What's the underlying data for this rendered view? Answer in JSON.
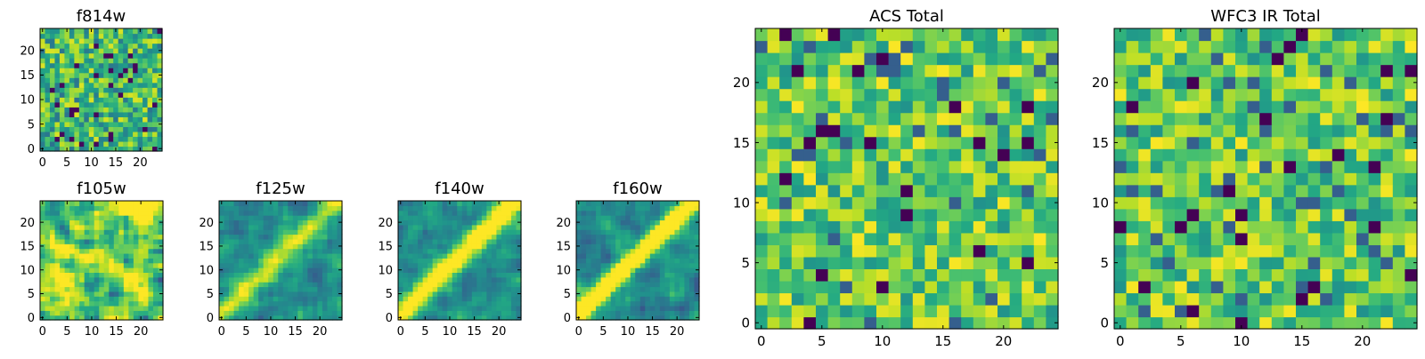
{
  "chart_data": [
    {
      "type": "heatmap",
      "title": "f814w",
      "colormap": "viridis",
      "rows": 25,
      "cols": 25,
      "pattern": "noise",
      "seed": 11,
      "xticks": [
        "0",
        "5",
        "10",
        "15",
        "20"
      ],
      "yticks": [
        "0",
        "5",
        "10",
        "15",
        "20"
      ],
      "xlim": [
        0,
        25
      ],
      "ylim": [
        0,
        25
      ],
      "grid": false,
      "legend": "none"
    },
    {
      "type": "heatmap",
      "title": "f105w",
      "colormap": "viridis",
      "rows": 25,
      "cols": 25,
      "pattern": "smooth",
      "seed": 21,
      "xticks": [
        "0",
        "5",
        "10",
        "15",
        "20"
      ],
      "yticks": [
        "0",
        "5",
        "10",
        "15",
        "20"
      ],
      "xlim": [
        0,
        25
      ],
      "ylim": [
        0,
        25
      ],
      "grid": false,
      "legend": "none"
    },
    {
      "type": "heatmap",
      "title": "f125w",
      "colormap": "viridis",
      "rows": 25,
      "cols": 25,
      "pattern": "diagonal",
      "seed": 31,
      "strength": 0.45,
      "xticks": [
        "0",
        "5",
        "10",
        "15",
        "20"
      ],
      "yticks": [
        "0",
        "5",
        "10",
        "15",
        "20"
      ],
      "xlim": [
        0,
        25
      ],
      "ylim": [
        0,
        25
      ],
      "grid": false,
      "legend": "none"
    },
    {
      "type": "heatmap",
      "title": "f140w",
      "colormap": "viridis",
      "rows": 25,
      "cols": 25,
      "pattern": "diagonal",
      "seed": 41,
      "strength": 0.65,
      "xticks": [
        "0",
        "5",
        "10",
        "15",
        "20"
      ],
      "yticks": [
        "0",
        "5",
        "10",
        "15",
        "20"
      ],
      "xlim": [
        0,
        25
      ],
      "ylim": [
        0,
        25
      ],
      "grid": false,
      "legend": "none"
    },
    {
      "type": "heatmap",
      "title": "f160w",
      "colormap": "viridis",
      "rows": 25,
      "cols": 25,
      "pattern": "diagonal",
      "seed": 51,
      "strength": 0.9,
      "xticks": [
        "0",
        "5",
        "10",
        "15",
        "20"
      ],
      "yticks": [
        "0",
        "5",
        "10",
        "15",
        "20"
      ],
      "xlim": [
        0,
        25
      ],
      "ylim": [
        0,
        25
      ],
      "grid": false,
      "legend": "none"
    },
    {
      "type": "heatmap",
      "title": "ACS Total",
      "colormap": "viridis",
      "rows": 25,
      "cols": 25,
      "pattern": "noise-bright",
      "seed": 61,
      "xticks": [
        "0",
        "5",
        "10",
        "15",
        "20"
      ],
      "yticks": [
        "0",
        "5",
        "10",
        "15",
        "20"
      ],
      "xlim": [
        0,
        25
      ],
      "ylim": [
        0,
        25
      ],
      "grid": false,
      "legend": "none"
    },
    {
      "type": "heatmap",
      "title": "WFC3 IR Total",
      "colormap": "viridis",
      "rows": 25,
      "cols": 25,
      "pattern": "noise-bright",
      "seed": 71,
      "xticks": [
        "0",
        "5",
        "10",
        "15",
        "20"
      ],
      "yticks": [
        "0",
        "5",
        "10",
        "15",
        "20"
      ],
      "xlim": [
        0,
        25
      ],
      "ylim": [
        0,
        25
      ],
      "grid": false,
      "legend": "none"
    }
  ]
}
